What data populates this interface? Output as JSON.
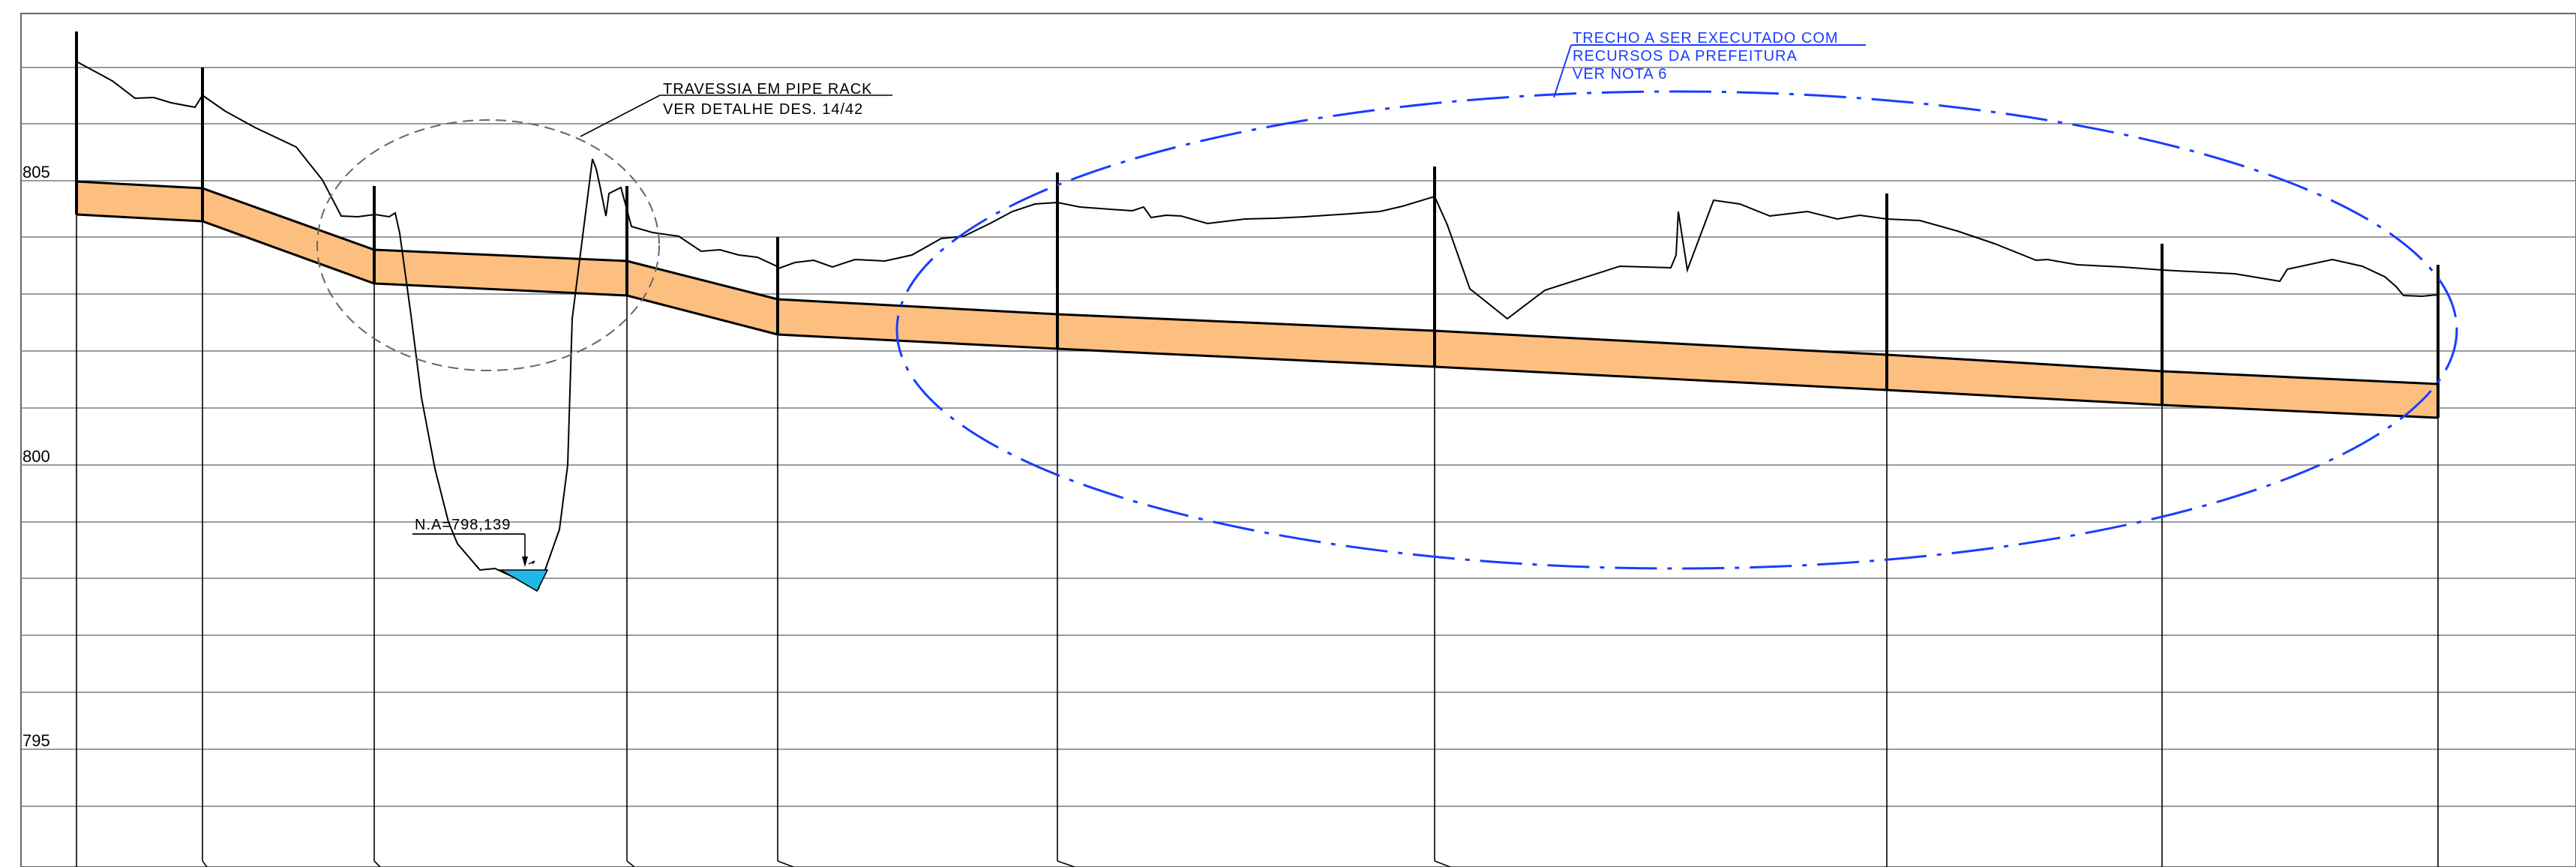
{
  "drawing": {
    "elevation_labels": [
      "805",
      "800",
      "795"
    ],
    "notes": {
      "pipe_rack": [
        "TRAVESSIA EM PIPE RACK",
        "VER DETALHE DES. 14/42"
      ],
      "prefeitura": [
        "TRECHO A SER EXECUTADO COM",
        "RECURSOS DA PREFEITURA",
        "VER NOTA 6"
      ],
      "water_level": "N.A=798,139"
    },
    "colors": {
      "pipe_fill": "#fdbf80",
      "grid": "#7a7a7a",
      "blue_callout": "#1a3cff",
      "water": "#1fb8e8"
    }
  }
}
